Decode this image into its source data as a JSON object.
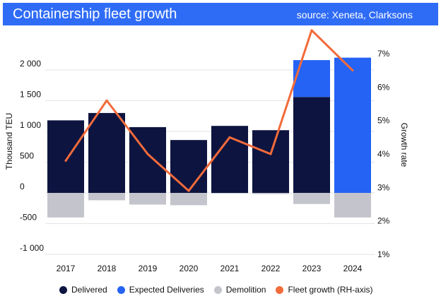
{
  "header": {
    "title": "Containership fleet growth",
    "source": "source: Xeneta, Clarksons",
    "background": "#2f6cf6"
  },
  "colors": {
    "delivered": "#0d1440",
    "expected": "#2563f5",
    "demolition": "#c3c4cc",
    "fleet_growth": "#f26b3a"
  },
  "chart_data": {
    "type": "bar",
    "categories": [
      "2017",
      "2018",
      "2019",
      "2020",
      "2021",
      "2022",
      "2023",
      "2024"
    ],
    "series": [
      {
        "name": "Delivered",
        "axis": "left",
        "values": [
          1180,
          1300,
          1070,
          860,
          1090,
          1020,
          1560,
          0
        ]
      },
      {
        "name": "Expected Deliveries",
        "axis": "left",
        "values": [
          0,
          0,
          0,
          0,
          0,
          0,
          600,
          2200
        ]
      },
      {
        "name": "Demolition",
        "axis": "left",
        "values": [
          -400,
          -120,
          -190,
          -200,
          -10,
          -20,
          -180,
          -400
        ]
      },
      {
        "name": "Fleet growth (RH-axis)",
        "type": "line",
        "axis": "right",
        "values": [
          3.8,
          5.6,
          4.0,
          2.9,
          4.5,
          4.0,
          7.7,
          6.5
        ]
      }
    ],
    "ylabel": "Thousand TEU",
    "y2label": "Growth rate",
    "ylim": [
      -1000,
      2000
    ],
    "y2lim": [
      1,
      7
    ],
    "yticks": [
      {
        "value": 2000,
        "label": "2 000"
      },
      {
        "value": 1500,
        "label": "1 500"
      },
      {
        "value": 1000,
        "label": "1 000"
      },
      {
        "value": 500,
        "label": "500"
      },
      {
        "value": 0,
        "label": "0"
      },
      {
        "value": -500,
        "label": "-500"
      },
      {
        "value": -1000,
        "label": "-1 000"
      }
    ],
    "y2ticks": [
      {
        "value": 7,
        "label": "7%"
      },
      {
        "value": 6,
        "label": "6%"
      },
      {
        "value": 5,
        "label": "5%"
      },
      {
        "value": 4,
        "label": "4%"
      },
      {
        "value": 3,
        "label": "3%"
      },
      {
        "value": 2,
        "label": "2%"
      },
      {
        "value": 1,
        "label": "1%"
      }
    ],
    "grid": true,
    "legend_position": "bottom"
  }
}
